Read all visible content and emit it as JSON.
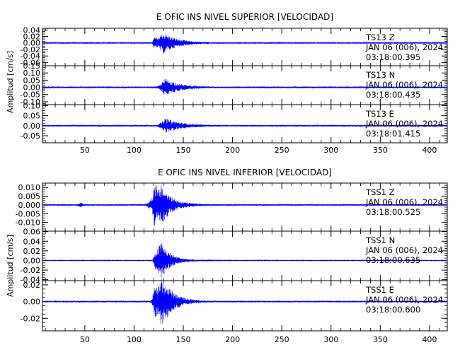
{
  "chart_data": [
    {
      "type": "line",
      "title": "E OFIC INS NIVEL SUPERIOR [VELOCIDAD]",
      "ylabel": "Amplitud [cm/s]",
      "x_ticks": [
        "50",
        "100",
        "150",
        "200",
        "250",
        "300",
        "350",
        "400"
      ],
      "xlim": [
        7,
        418
      ],
      "grid": false,
      "panels": [
        {
          "station": "TS13",
          "component": "Z",
          "date": "JAN 06 (006), 2024",
          "time": "03:18:00.395",
          "ylim": [
            -0.07,
            0.045
          ],
          "y_ticks": [
            "0.04",
            "0.02",
            "0.00",
            "-0.02",
            "-0.04",
            "-0.06"
          ],
          "y_tick_values": [
            0.04,
            0.02,
            0.0,
            -0.02,
            -0.04,
            -0.06
          ],
          "signal": {
            "noise": 0.0018,
            "onset": 118,
            "peak_time": 129,
            "peak": 0.033,
            "decay": 14,
            "extra": [
              [
                121,
                0.012
              ]
            ]
          }
        },
        {
          "station": "TS13",
          "component": "N",
          "date": "JAN 06 (006), 2024",
          "time": "03:18:00.435",
          "ylim": [
            -0.12,
            0.15
          ],
          "y_ticks": [
            "0.15",
            "0.10",
            "0.05",
            "0.00",
            "-0.05",
            "-0.10"
          ],
          "y_tick_values": [
            0.15,
            0.1,
            0.05,
            0.0,
            -0.05,
            -0.1
          ],
          "signal": {
            "noise": 0.004,
            "onset": 122,
            "peak_time": 132,
            "peak": 0.06,
            "decay": 14,
            "extra": []
          }
        },
        {
          "station": "TS13",
          "component": "E",
          "date": "JAN 06 (006), 2024",
          "time": "03:18:01.415",
          "ylim": [
            -0.085,
            0.105
          ],
          "y_ticks": [
            "0.10",
            "0.05",
            "0.00",
            "-0.05"
          ],
          "y_tick_values": [
            0.1,
            0.05,
            0.0,
            -0.05
          ],
          "signal": {
            "noise": 0.0032,
            "onset": 122,
            "peak_time": 132,
            "peak": 0.035,
            "decay": 16,
            "extra": []
          }
        }
      ]
    },
    {
      "type": "line",
      "title": "E OFIC INS NIVEL INFERIOR [VELOCIDAD]",
      "ylabel": "Amplitud [cm/s]",
      "x_ticks": [
        "50",
        "100",
        "150",
        "200",
        "250",
        "300",
        "350",
        "400"
      ],
      "xlim": [
        7,
        418
      ],
      "grid": false,
      "panels": [
        {
          "station": "TSS1",
          "component": "Z",
          "date": "JAN 06 (006), 2024",
          "time": "03:18:00.525",
          "ylim": [
            -0.015,
            0.0125
          ],
          "y_ticks": [
            "0.010",
            "0.005",
            "0.000",
            "-0.005",
            "-0.010"
          ],
          "y_tick_values": [
            0.01,
            0.005,
            0.0,
            -0.005,
            -0.01
          ],
          "signal": {
            "noise": 0.0004,
            "onset": 110,
            "peak_time": 128,
            "peak": 0.011,
            "decay": 11,
            "extra": [
              [
                46,
                0.0012
              ],
              [
                121,
                0.008
              ]
            ]
          }
        },
        {
          "station": "TSS1",
          "component": "N",
          "date": "JAN 06 (006), 2024",
          "time": "03:18:00.635",
          "ylim": [
            -0.042,
            0.061
          ],
          "y_ticks": [
            "0.06",
            "0.04",
            "0.02",
            "0.00",
            "-0.02",
            "-0.04"
          ],
          "y_tick_values": [
            0.06,
            0.04,
            0.02,
            0.0,
            -0.02,
            -0.04
          ],
          "signal": {
            "noise": 0.0008,
            "onset": 118,
            "peak_time": 127,
            "peak": 0.04,
            "decay": 10,
            "extra": [
              [
                122,
                0.008
              ]
            ]
          }
        },
        {
          "station": "TSS1",
          "component": "E",
          "date": "JAN 06 (006), 2024",
          "time": "03:18:00.600",
          "ylim": [
            -0.035,
            0.025
          ],
          "y_ticks": [
            "0.02",
            "0.00",
            "-0.02"
          ],
          "y_tick_values": [
            0.02,
            0.0,
            -0.02
          ],
          "signal": {
            "noise": 0.0006,
            "onset": 116,
            "peak_time": 128,
            "peak": 0.03,
            "decay": 12,
            "extra": [
              [
                121,
                0.01
              ]
            ]
          }
        }
      ]
    }
  ],
  "colors": {
    "trace": "#0000ff",
    "axis": "#000000",
    "background": "#ffffff"
  }
}
